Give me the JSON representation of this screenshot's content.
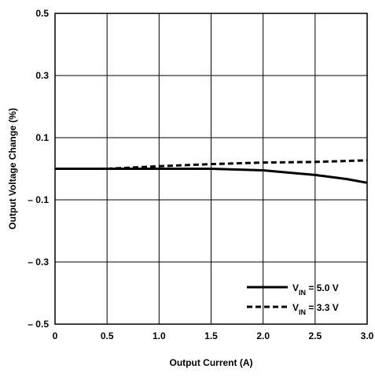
{
  "chart_data": {
    "type": "line",
    "title": "",
    "xlabel": "Output Current (A)",
    "ylabel": "Output Voltage Change (%)",
    "xlim": [
      0,
      3.0
    ],
    "ylim": [
      -0.5,
      0.5
    ],
    "grid": true,
    "x_ticks": [
      {
        "value": 0,
        "label": "0"
      },
      {
        "value": 0.5,
        "label": "0.5"
      },
      {
        "value": 1.0,
        "label": "1.0"
      },
      {
        "value": 1.5,
        "label": "1.5"
      },
      {
        "value": 2.0,
        "label": "2.0"
      },
      {
        "value": 2.5,
        "label": "2.5"
      },
      {
        "value": 3.0,
        "label": "3.0"
      }
    ],
    "y_ticks": [
      {
        "value": 0.5,
        "label": "0.5"
      },
      {
        "value": 0.3,
        "label": "0.3"
      },
      {
        "value": 0.1,
        "label": "0.1"
      },
      {
        "value": -0.1,
        "label": "– 0.1"
      },
      {
        "value": -0.3,
        "label": "– 0.3"
      },
      {
        "value": -0.5,
        "label": "– 0.5"
      }
    ],
    "legend_position": "bottom-right",
    "series": [
      {
        "name": "VIN = 5.0 V",
        "legend_main": "V",
        "legend_sub": "IN",
        "legend_rest": " = 5.0 V",
        "style": "solid",
        "color": "#000000",
        "x": [
          0,
          0.5,
          1.0,
          1.5,
          2.0,
          2.5,
          2.8,
          3.0
        ],
        "y": [
          0,
          0,
          0,
          0,
          -0.005,
          -0.02,
          -0.033,
          -0.045
        ]
      },
      {
        "name": "VIN = 3.3 V",
        "legend_main": "V",
        "legend_sub": "IN",
        "legend_rest": " = 3.3 V",
        "style": "dashed",
        "color": "#000000",
        "x": [
          0,
          0.5,
          1.0,
          1.5,
          2.0,
          2.5,
          3.0
        ],
        "y": [
          0,
          0,
          0.008,
          0.015,
          0.02,
          0.022,
          0.027
        ]
      }
    ]
  }
}
